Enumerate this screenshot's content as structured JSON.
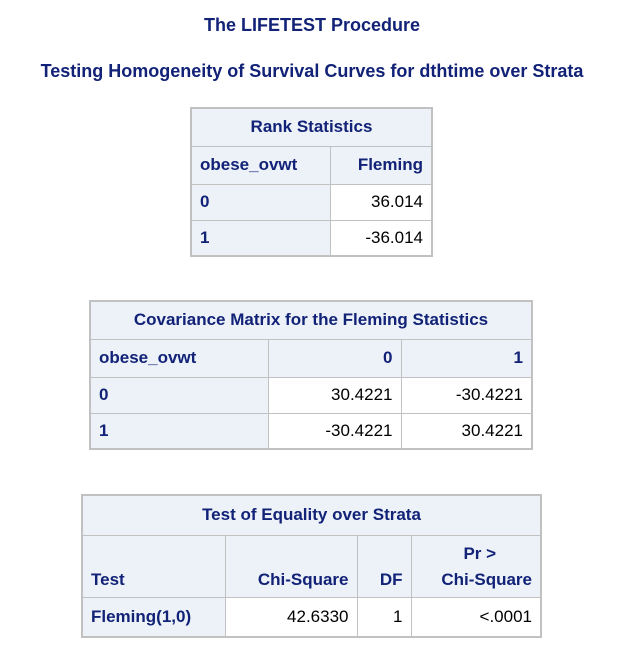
{
  "procedure_title": "The LIFETEST Procedure",
  "subtitle": "Testing Homogeneity of Survival Curves for dthtime over Strata",
  "rank_statistics": {
    "caption": "Rank Statistics",
    "headers": [
      "obese_ovwt",
      "Fleming"
    ],
    "rows": [
      {
        "label": "0",
        "value": "36.014"
      },
      {
        "label": "1",
        "value": "-36.014"
      }
    ]
  },
  "covariance": {
    "caption": "Covariance Matrix for the Fleming Statistics",
    "headers": [
      "obese_ovwt",
      "0",
      "1"
    ],
    "rows": [
      {
        "label": "0",
        "c0": "30.4221",
        "c1": "-30.4221"
      },
      {
        "label": "1",
        "c0": "-30.4221",
        "c1": "30.4221"
      }
    ]
  },
  "equality_test": {
    "caption": "Test of Equality over Strata",
    "headers": {
      "test": "Test",
      "chisq": "Chi-Square",
      "df": "DF",
      "pr_top": "Pr >",
      "pr_bottom": "Chi-Square"
    },
    "rows": [
      {
        "test": "Fleming(1,0)",
        "chisq": "42.6330",
        "df": "1",
        "p": "<.0001"
      }
    ]
  }
}
